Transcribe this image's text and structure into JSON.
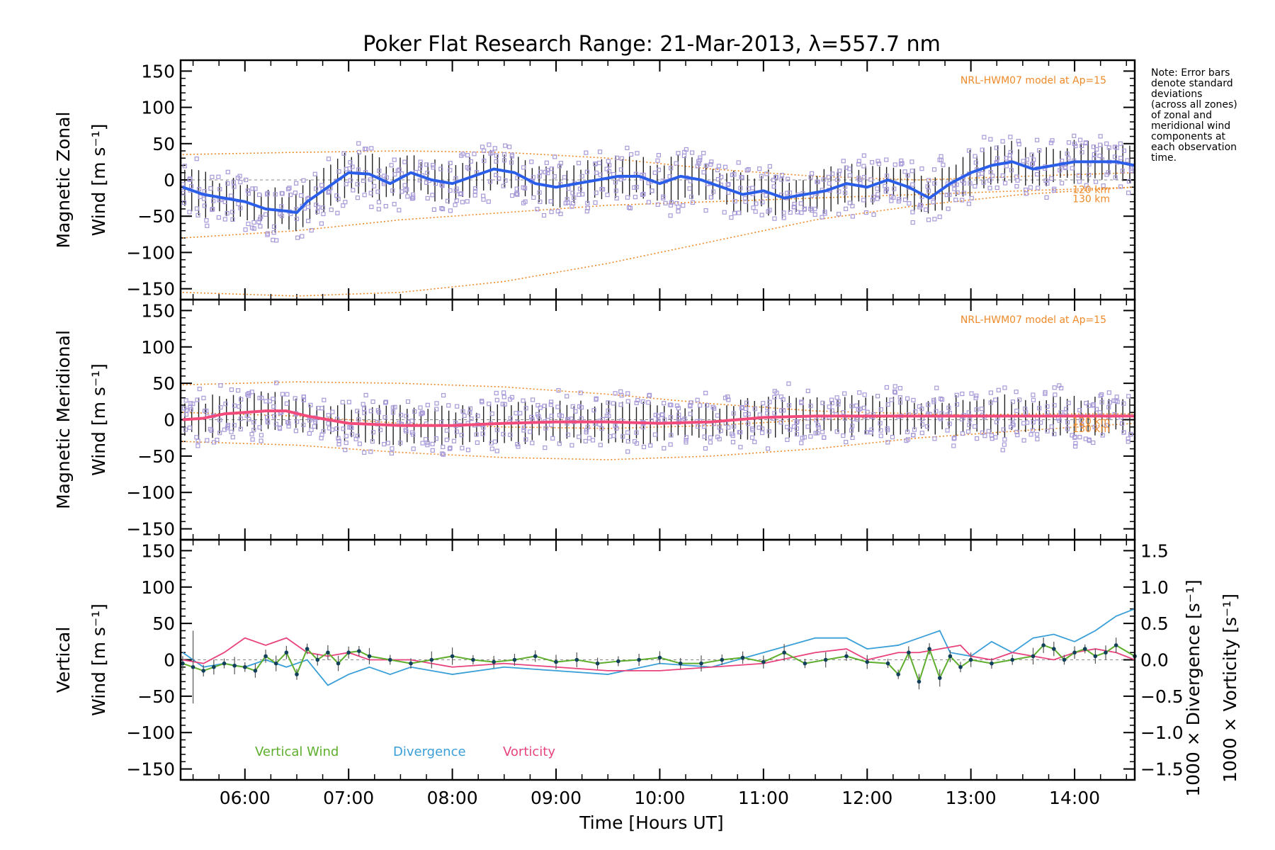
{
  "chart_data": {
    "type": "line",
    "title": "Poker Flat Research Range: 21-Mar-2013, λ=557.7 nm",
    "xlabel": "Time [Hours UT]",
    "x_ticks": [
      "06:00",
      "07:00",
      "08:00",
      "09:00",
      "10:00",
      "11:00",
      "12:00",
      "13:00",
      "14:00"
    ],
    "xlim": [
      5.38,
      14.58
    ],
    "note": [
      "Note: Error bars",
      "denote standard",
      "deviations",
      "(across all zones)",
      "of zonal and",
      "meridional wind",
      "components at",
      "each observation",
      "time."
    ],
    "colors": {
      "zonal": "#2b5ee8",
      "meridional": "#f24a7a",
      "vertical": "#5fae2e",
      "divergence": "#3a9fd8",
      "vorticity": "#e8437e",
      "model": "#ee8a2a",
      "scatter": "#a89ad8",
      "errbar": "#222222"
    },
    "panels": [
      {
        "ylabel_line1": "Magnetic Zonal",
        "ylabel_line2": "Wind [m s⁻¹]",
        "ylim": [
          -165,
          165
        ],
        "y_ticks": [
          "150",
          "100",
          "50",
          "0",
          "−50",
          "−100",
          "−150"
        ],
        "model_label": "NRL-HWM07 model at Ap=15",
        "km_labels": [
          "120 km",
          "130 km"
        ],
        "series": [
          {
            "name": "Zonal wind",
            "x": [
              5.4,
              5.6,
              5.8,
              6.0,
              6.2,
              6.4,
              6.5,
              6.6,
              6.8,
              7.0,
              7.2,
              7.4,
              7.6,
              7.8,
              8.0,
              8.2,
              8.4,
              8.6,
              8.8,
              9.0,
              9.2,
              9.4,
              9.6,
              9.8,
              10.0,
              10.2,
              10.4,
              10.6,
              10.8,
              11.0,
              11.2,
              11.4,
              11.6,
              11.8,
              12.0,
              12.2,
              12.4,
              12.6,
              12.8,
              13.0,
              13.2,
              13.4,
              13.6,
              13.8,
              14.0,
              14.2,
              14.4,
              14.58
            ],
            "y": [
              -10,
              -20,
              -25,
              -30,
              -40,
              -43,
              -45,
              -30,
              -10,
              10,
              8,
              -5,
              10,
              0,
              -5,
              5,
              15,
              10,
              -5,
              -10,
              -5,
              0,
              5,
              5,
              -5,
              5,
              0,
              -10,
              -20,
              -15,
              -25,
              -20,
              -15,
              -5,
              -10,
              0,
              -10,
              -25,
              -5,
              10,
              20,
              25,
              15,
              20,
              25,
              25,
              25,
              20
            ]
          },
          {
            "name": "Model 1",
            "x": [
              5.4,
              6.5,
              7.5,
              8.5,
              9.5,
              10.5,
              11.5,
              12.5,
              13.5,
              14.58
            ],
            "y": [
              35,
              38,
              40,
              38,
              30,
              15,
              5,
              0,
              5,
              10
            ]
          },
          {
            "name": "Model 2",
            "x": [
              5.4,
              6.5,
              7.5,
              8.5,
              9.5,
              10.5,
              11.5,
              12.5,
              13.5,
              14.58
            ],
            "y": [
              -80,
              -70,
              -55,
              -45,
              -35,
              -30,
              -25,
              -20,
              -15,
              -10
            ]
          },
          {
            "name": "Model 3",
            "x": [
              5.4,
              6.5,
              7.5,
              8.5,
              9.5,
              10.5,
              11.5,
              12.5,
              13.5,
              14.58
            ],
            "y": [
              -155,
              -160,
              -155,
              -140,
              -115,
              -85,
              -55,
              -35,
              -20,
              -10
            ]
          }
        ]
      },
      {
        "ylabel_line1": "Magnetic Meridional",
        "ylabel_line2": "Wind [m s⁻¹]",
        "ylim": [
          -165,
          165
        ],
        "y_ticks": [
          "150",
          "100",
          "50",
          "0",
          "−50",
          "−100",
          "−150"
        ],
        "model_label": "NRL-HWM07 model at Ap=15",
        "km_labels": [
          "120 km",
          "130 km"
        ],
        "series": [
          {
            "name": "Meridional wind",
            "x": [
              5.4,
              5.6,
              5.8,
              6.0,
              6.2,
              6.4,
              6.6,
              6.8,
              7.0,
              7.5,
              8.0,
              8.5,
              9.0,
              9.5,
              10.0,
              10.5,
              11.0,
              11.5,
              12.0,
              12.5,
              13.0,
              13.5,
              14.0,
              14.58
            ],
            "y": [
              0,
              2,
              8,
              10,
              12,
              12,
              5,
              0,
              -5,
              -8,
              -8,
              -5,
              -3,
              -3,
              -5,
              -3,
              3,
              5,
              5,
              5,
              5,
              5,
              5,
              5
            ]
          },
          {
            "name": "Model 1",
            "x": [
              5.4,
              6.5,
              7.5,
              8.5,
              9.5,
              10.5,
              11.5,
              12.5,
              13.5,
              14.58
            ],
            "y": [
              48,
              52,
              50,
              45,
              35,
              22,
              12,
              8,
              5,
              5
            ]
          },
          {
            "name": "Model 2",
            "x": [
              5.4,
              6.5,
              7.5,
              8.5,
              9.5,
              10.5,
              11.5,
              12.5,
              13.5,
              14.58
            ],
            "y": [
              -30,
              -35,
              -45,
              -52,
              -55,
              -50,
              -40,
              -25,
              -15,
              -5
            ]
          },
          {
            "name": "Model 3",
            "x": [
              5.4,
              6.5,
              7.5,
              8.5,
              9.5,
              10.5,
              11.5,
              12.5,
              13.5,
              14.58
            ],
            "y": [
              10,
              5,
              -5,
              -10,
              -12,
              -8,
              0,
              5,
              8,
              8
            ]
          }
        ]
      },
      {
        "ylabel_line1": "Vertical",
        "ylabel_line2": "Wind [m s⁻¹]",
        "ylim": [
          -165,
          165
        ],
        "y_ticks": [
          "150",
          "100",
          "50",
          "0",
          "−50",
          "−100",
          "−150"
        ],
        "right_axis_label_div": "1000 × Divergence [s⁻¹]",
        "right_axis_label_vor": "1000 × Vorticity [s⁻¹]",
        "right_ticks": [
          "1.5",
          "1.0",
          "0.5",
          "0.0",
          "−0.5",
          "−1.0",
          "−1.5"
        ],
        "right_ylim": [
          -1.65,
          1.65
        ],
        "legend": [
          "Vertical Wind",
          "Divergence",
          "Vorticity"
        ],
        "series": [
          {
            "name": "Vertical Wind",
            "axis": "left",
            "x": [
              5.4,
              5.5,
              5.6,
              5.7,
              5.8,
              5.9,
              6.0,
              6.1,
              6.2,
              6.3,
              6.4,
              6.5,
              6.6,
              6.7,
              6.8,
              6.9,
              7.0,
              7.1,
              7.2,
              7.4,
              7.6,
              7.8,
              8.0,
              8.2,
              8.4,
              8.6,
              8.8,
              9.0,
              9.2,
              9.4,
              9.6,
              9.8,
              10.0,
              10.2,
              10.4,
              10.6,
              10.8,
              11.0,
              11.2,
              11.4,
              11.6,
              11.8,
              12.0,
              12.2,
              12.3,
              12.4,
              12.5,
              12.6,
              12.7,
              12.8,
              12.9,
              13.0,
              13.2,
              13.4,
              13.6,
              13.7,
              13.8,
              13.9,
              14.0,
              14.1,
              14.2,
              14.3,
              14.4,
              14.58
            ],
            "y": [
              -5,
              -10,
              -15,
              -10,
              -5,
              -8,
              -10,
              -15,
              5,
              -5,
              10,
              -20,
              15,
              0,
              10,
              -5,
              10,
              12,
              5,
              0,
              -5,
              0,
              5,
              0,
              -3,
              0,
              5,
              -3,
              0,
              -5,
              -2,
              0,
              3,
              -5,
              -5,
              0,
              3,
              -3,
              10,
              -5,
              0,
              5,
              -3,
              -5,
              -20,
              10,
              -30,
              15,
              -25,
              5,
              -10,
              0,
              -5,
              0,
              5,
              20,
              15,
              0,
              10,
              15,
              5,
              10,
              20,
              5
            ]
          },
          {
            "name": "Divergence",
            "axis": "right",
            "x": [
              5.4,
              5.6,
              5.8,
              6.0,
              6.2,
              6.4,
              6.6,
              6.8,
              7.0,
              7.2,
              7.4,
              7.6,
              7.8,
              8.0,
              8.5,
              9.0,
              9.5,
              10.0,
              10.5,
              11.0,
              11.5,
              11.8,
              12.0,
              12.3,
              12.5,
              12.6,
              12.7,
              12.8,
              13.0,
              13.2,
              13.4,
              13.6,
              13.8,
              14.0,
              14.2,
              14.4,
              14.58
            ],
            "y": [
              0.1,
              -0.1,
              -0.05,
              -0.1,
              0.0,
              -0.1,
              0.0,
              -0.35,
              -0.2,
              -0.1,
              -0.2,
              -0.1,
              -0.15,
              -0.2,
              -0.1,
              -0.15,
              -0.2,
              -0.05,
              -0.1,
              0.1,
              0.3,
              0.3,
              0.15,
              0.2,
              0.3,
              0.35,
              0.4,
              0.1,
              0.05,
              0.25,
              0.1,
              0.3,
              0.35,
              0.25,
              0.4,
              0.6,
              0.7
            ]
          },
          {
            "name": "Vorticity",
            "axis": "right",
            "x": [
              5.4,
              5.6,
              5.8,
              6.0,
              6.2,
              6.4,
              6.6,
              6.8,
              7.0,
              7.2,
              7.4,
              7.6,
              7.8,
              8.0,
              8.5,
              9.0,
              9.5,
              10.0,
              10.5,
              11.0,
              11.5,
              11.8,
              12.0,
              12.3,
              12.5,
              12.7,
              12.9,
              13.0,
              13.2,
              13.4,
              13.6,
              13.8,
              14.0,
              14.2,
              14.4,
              14.58
            ],
            "y": [
              0.0,
              -0.05,
              0.1,
              0.3,
              0.2,
              0.3,
              0.1,
              0.05,
              0.1,
              0.0,
              0.0,
              0.0,
              -0.05,
              -0.1,
              -0.05,
              -0.1,
              -0.15,
              -0.15,
              -0.1,
              -0.05,
              0.1,
              0.15,
              0.0,
              0.1,
              0.1,
              0.15,
              0.2,
              0.05,
              0.0,
              0.1,
              0.05,
              0.0,
              0.1,
              0.15,
              0.1,
              0.0
            ]
          }
        ]
      }
    ]
  }
}
